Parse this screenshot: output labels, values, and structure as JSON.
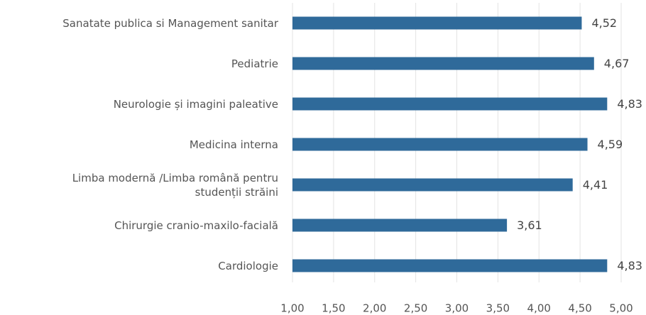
{
  "chart_data": {
    "type": "bar",
    "orientation": "horizontal",
    "categories": [
      "Sanatate publica si Management sanitar",
      "Pediatrie",
      "Neurologie și imagini paleative",
      "Medicina interna",
      "Limba modernă /Limba română pentru\nstudenții străini",
      "Chirurgie cranio-maxilo-facială",
      "Cardiologie"
    ],
    "values": [
      4.52,
      4.67,
      4.83,
      4.59,
      4.41,
      3.61,
      4.83
    ],
    "value_labels": [
      "4,52",
      "4,67",
      "4,83",
      "4,59",
      "4,41",
      "3,61",
      "4,83"
    ],
    "color": "#2f6a9a",
    "xlim": [
      1,
      5
    ],
    "xticks": [
      {
        "value": 1,
        "label": "1,00"
      },
      {
        "value": 1.5,
        "label": "1,50"
      },
      {
        "value": 2,
        "label": "2,00"
      },
      {
        "value": 2.5,
        "label": "2,50"
      },
      {
        "value": 3,
        "label": "3,00"
      },
      {
        "value": 3.5,
        "label": "3,50"
      },
      {
        "value": 4,
        "label": "4,00"
      },
      {
        "value": 4.5,
        "label": "4,50"
      },
      {
        "value": 5,
        "label": "5,00"
      }
    ],
    "grid": true
  }
}
